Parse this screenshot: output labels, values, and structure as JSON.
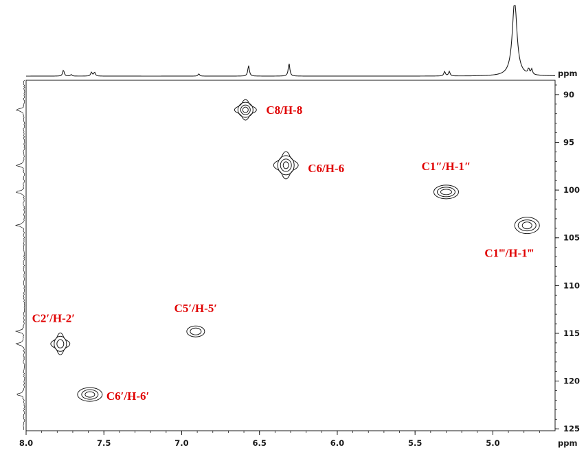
{
  "chart_data": {
    "type": "scatter",
    "title": "",
    "xlabel": "ppm",
    "ylabel": "ppm",
    "xlim": [
      8.0,
      4.6
    ],
    "ylim": [
      88.5,
      125.2
    ],
    "x_ticks": [
      "8.0",
      "7.5",
      "7.0",
      "6.5",
      "6.0",
      "5.5",
      "5.0"
    ],
    "x_tick_values": [
      8.0,
      7.5,
      7.0,
      6.5,
      6.0,
      5.5,
      5.0
    ],
    "y_ticks": [
      "90",
      "95",
      "100",
      "105",
      "110",
      "115",
      "120",
      "125"
    ],
    "y_tick_values": [
      90,
      95,
      100,
      105,
      110,
      115,
      120,
      125
    ],
    "grid": false,
    "label_color": "#e00000",
    "line_color": "#1a1a1a",
    "peaks": [
      {
        "label": "C8/H-8",
        "h": 6.59,
        "c": 91.6
      },
      {
        "label": "C6/H-6",
        "h": 6.33,
        "c": 97.4
      },
      {
        "label": "C1″/H-1″",
        "h": 5.3,
        "c": 100.2
      },
      {
        "label": "C1‴/H-1‴",
        "h": 4.78,
        "c": 103.7
      },
      {
        "label": "C5′/H-5′",
        "h": 6.91,
        "c": 114.8
      },
      {
        "label": "C2′/H-2′",
        "h": 7.78,
        "c": 116.1
      },
      {
        "label": "C6′/H-6′",
        "h": 7.59,
        "c": 121.4
      }
    ],
    "projection_1h": [
      {
        "h": 7.76,
        "intensity": 0.08
      },
      {
        "h": 7.71,
        "intensity": 0.02
      },
      {
        "h": 7.58,
        "intensity": 0.05
      },
      {
        "h": 7.56,
        "intensity": 0.05
      },
      {
        "h": 6.89,
        "intensity": 0.03
      },
      {
        "h": 6.57,
        "intensity": 0.14
      },
      {
        "h": 6.31,
        "intensity": 0.17
      },
      {
        "h": 5.31,
        "intensity": 0.06
      },
      {
        "h": 5.28,
        "intensity": 0.06
      },
      {
        "h": 4.86,
        "intensity": 1.0
      },
      {
        "h": 4.77,
        "intensity": 0.07
      },
      {
        "h": 4.75,
        "intensity": 0.07
      }
    ],
    "projection_13c": [
      91.6,
      97.4,
      100.2,
      103.7,
      114.8,
      116.1,
      121.4
    ]
  }
}
